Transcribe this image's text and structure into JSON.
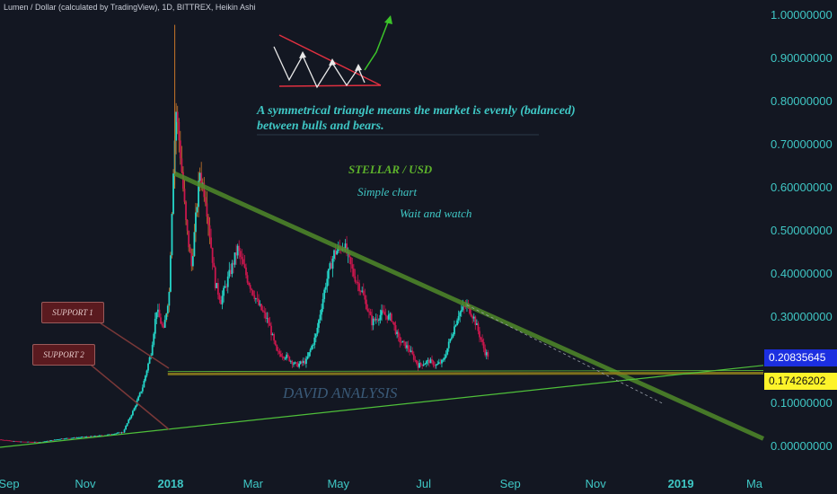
{
  "header": {
    "title": "Lumen / Dollar (calculated by TradingView), 1D, BITTREX, Heikin Ashi"
  },
  "annotations": {
    "note_line1": "A symmetrical triangle means the market is evenly (balanced)",
    "note_line2": "between bulls and bears.",
    "title": "STELLAR / USD",
    "subtitle": "Simple chart",
    "wait": "Wait and watch",
    "watermark": "DAVID ANALYSIS",
    "support1": "SUPPORT 1",
    "support2": "SUPPORT 2"
  },
  "price_tags": {
    "current": "0.20835645",
    "support": "0.17426202"
  },
  "colors": {
    "background": "#131722",
    "up": "#25d6c9",
    "down": "#c9174d",
    "trendline": "#4f8a2a",
    "support": "#8a7a1c",
    "axis_text": "#3fc7c5"
  },
  "chart_data": {
    "type": "candlestick",
    "symbol": "XLM/USD",
    "timeframe": "1D",
    "exchange": "BITTREX",
    "style": "Heikin Ashi",
    "ylim": [
      0,
      1.0
    ],
    "y_ticks": [
      "1.00000000",
      "0.90000000",
      "0.80000000",
      "0.70000000",
      "0.60000000",
      "0.50000000",
      "0.40000000",
      "0.30000000",
      "0.20000000",
      "0.10000000",
      "0.00000000"
    ],
    "x_ticks": [
      "Sep",
      "Nov",
      "2018",
      "Mar",
      "May",
      "Jul",
      "Sep",
      "Nov",
      "2019",
      "Ma"
    ],
    "x_bold": [
      false,
      false,
      true,
      false,
      false,
      false,
      false,
      false,
      true,
      false
    ],
    "dates": [
      "2017-09-01",
      "2019-03-01"
    ],
    "series": [
      {
        "points": [
          [
            "2017-09-01",
            0.018
          ],
          [
            "2017-09-15",
            0.013
          ],
          [
            "2017-09-30",
            0.012
          ],
          [
            "2017-10-15",
            0.02
          ],
          [
            "2017-10-31",
            0.024
          ],
          [
            "2017-11-15",
            0.028
          ],
          [
            "2017-11-28",
            0.035
          ],
          [
            "2017-12-06",
            0.09
          ],
          [
            "2017-12-12",
            0.14
          ],
          [
            "2017-12-18",
            0.22
          ],
          [
            "2017-12-22",
            0.32
          ],
          [
            "2017-12-27",
            0.27
          ],
          [
            "2017-12-31",
            0.36
          ],
          [
            "2018-01-03",
            0.65
          ],
          [
            "2018-01-05",
            0.78
          ],
          [
            "2018-01-08",
            0.68
          ],
          [
            "2018-01-12",
            0.52
          ],
          [
            "2018-01-16",
            0.42
          ],
          [
            "2018-01-22",
            0.64
          ],
          [
            "2018-01-26",
            0.58
          ],
          [
            "2018-02-02",
            0.38
          ],
          [
            "2018-02-06",
            0.34
          ],
          [
            "2018-02-10",
            0.38
          ],
          [
            "2018-02-18",
            0.46
          ],
          [
            "2018-02-25",
            0.39
          ],
          [
            "2018-03-05",
            0.33
          ],
          [
            "2018-03-12",
            0.29
          ],
          [
            "2018-03-18",
            0.22
          ],
          [
            "2018-03-25",
            0.21
          ],
          [
            "2018-04-01",
            0.19
          ],
          [
            "2018-04-08",
            0.2
          ],
          [
            "2018-04-15",
            0.26
          ],
          [
            "2018-04-22",
            0.38
          ],
          [
            "2018-04-28",
            0.45
          ],
          [
            "2018-05-05",
            0.47
          ],
          [
            "2018-05-12",
            0.4
          ],
          [
            "2018-05-18",
            0.36
          ],
          [
            "2018-05-25",
            0.29
          ],
          [
            "2018-06-01",
            0.31
          ],
          [
            "2018-06-08",
            0.3
          ],
          [
            "2018-06-13",
            0.25
          ],
          [
            "2018-06-20",
            0.23
          ],
          [
            "2018-06-27",
            0.19
          ],
          [
            "2018-07-05",
            0.2
          ],
          [
            "2018-07-10",
            0.19
          ],
          [
            "2018-07-15",
            0.2
          ],
          [
            "2018-07-20",
            0.25
          ],
          [
            "2018-07-26",
            0.31
          ],
          [
            "2018-08-01",
            0.33
          ],
          [
            "2018-08-06",
            0.3
          ],
          [
            "2018-08-10",
            0.26
          ],
          [
            "2018-08-14",
            0.22
          ],
          [
            "2018-08-17",
            0.21
          ]
        ]
      }
    ],
    "lines": [
      {
        "name": "descending-trendline",
        "from": [
          "2018-01-04",
          0.635
        ],
        "to": [
          "2019-03-01",
          0.02
        ]
      },
      {
        "name": "support-1",
        "from": [
          "2017-12-30",
          0.17
        ],
        "to": [
          "2019-03-01",
          0.172
        ]
      },
      {
        "name": "support-2",
        "from": [
          "2017-09-01",
          0.0
        ],
        "to": [
          "2019-03-01",
          0.19
        ]
      }
    ]
  }
}
